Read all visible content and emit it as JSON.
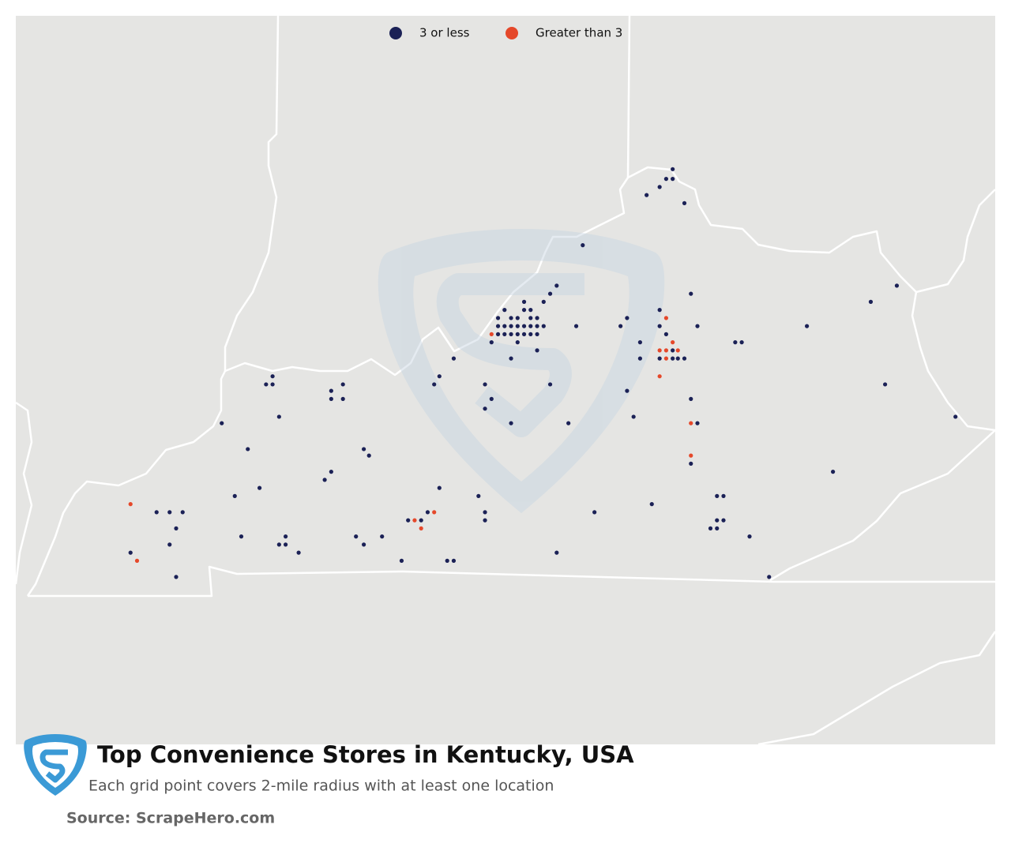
{
  "map": {
    "title": "Top Convenience Stores in Kentucky, USA",
    "subtitle": "Each grid point covers 2-mile radius with at least one location",
    "source": "Source: ScrapeHero.com",
    "series": [
      {
        "name": "3 or less",
        "color": "#1b2156",
        "lon": [
          -84.49,
          -84.54,
          -84.49,
          -84.59,
          -84.69,
          -84.4,
          -85.18,
          -85.38,
          -85.43,
          -85.48,
          -85.63,
          -85.78,
          -85.63,
          -85.58,
          -85.83,
          -85.73,
          -85.68,
          -85.58,
          -85.53,
          -85.83,
          -85.78,
          -85.73,
          -85.68,
          -85.63,
          -85.58,
          -85.53,
          -85.48,
          -85.83,
          -85.78,
          -85.73,
          -85.68,
          -85.63,
          -85.58,
          -85.53,
          -85.88,
          -85.68,
          -85.53,
          -85.73,
          -85.23,
          -84.89,
          -84.84,
          -84.59,
          -84.59,
          -84.35,
          -84.3,
          -84.54,
          -84.74,
          -84.49,
          -84.74,
          -84.59,
          -84.49,
          -84.45,
          -84.4,
          -84.01,
          -83.96,
          -83.46,
          -82.97,
          -82.77,
          -82.86,
          -82.32,
          -84.35,
          -84.3,
          -84.35,
          -84.84,
          -84.79,
          -85.43,
          -85.29,
          -85.73,
          -85.93,
          -85.88,
          -85.93,
          -86.17,
          -86.28,
          -86.32,
          -87.56,
          -87.61,
          -87.56,
          -87.11,
          -87.02,
          -87.11,
          -87.02,
          -87.51,
          -87.95,
          -87.75,
          -86.86,
          -86.82,
          -87.11,
          -87.16,
          -86.28,
          -85.98,
          -87.85,
          -87.66,
          -88.45,
          -88.35,
          -88.25,
          -88.3,
          -88.35,
          -88.65,
          -88.3,
          -87.8,
          -87.46,
          -87.51,
          -87.46,
          -87.36,
          -86.92,
          -86.86,
          -86.72,
          -86.57,
          -86.52,
          -86.42,
          -86.37,
          -86.22,
          -86.17,
          -85.93,
          -85.93,
          -85.38,
          -85.09,
          -84.65,
          -84.15,
          -84.1,
          -84.15,
          -84.1,
          -84.2,
          -84.15,
          -83.9,
          -83.75,
          -83.26
        ],
        "lat": [
          39.04,
          38.98,
          38.98,
          38.93,
          38.88,
          38.83,
          38.57,
          38.32,
          38.27,
          38.22,
          38.22,
          38.17,
          38.17,
          38.17,
          38.12,
          38.12,
          38.12,
          38.12,
          38.12,
          38.07,
          38.07,
          38.07,
          38.07,
          38.07,
          38.07,
          38.07,
          38.07,
          38.02,
          38.02,
          38.02,
          38.02,
          38.02,
          38.02,
          38.02,
          37.97,
          37.97,
          37.92,
          37.87,
          38.07,
          38.07,
          38.12,
          38.17,
          38.07,
          38.27,
          38.07,
          38.02,
          37.97,
          37.92,
          37.87,
          37.87,
          37.87,
          37.87,
          37.87,
          37.97,
          37.97,
          38.07,
          38.22,
          38.32,
          37.71,
          37.51,
          37.62,
          37.47,
          37.22,
          37.67,
          37.51,
          37.71,
          37.47,
          37.47,
          37.71,
          37.62,
          37.56,
          37.87,
          37.76,
          37.71,
          37.76,
          37.71,
          37.71,
          37.67,
          37.71,
          37.62,
          37.62,
          37.51,
          37.47,
          37.31,
          37.31,
          37.27,
          37.17,
          37.12,
          37.07,
          37.02,
          37.02,
          37.07,
          36.92,
          36.92,
          36.92,
          36.82,
          36.72,
          36.67,
          36.52,
          36.77,
          36.77,
          36.72,
          36.72,
          36.67,
          36.77,
          36.72,
          36.77,
          36.62,
          36.87,
          36.87,
          36.92,
          36.62,
          36.62,
          36.92,
          36.87,
          36.67,
          36.92,
          36.97,
          37.02,
          37.02,
          36.87,
          36.87,
          36.82,
          36.82,
          36.77,
          36.52,
          37.17
        ]
      },
      {
        "name": "Greater than 3",
        "color": "#e5482a",
        "lon": [
          -85.88,
          -84.54,
          -84.49,
          -84.59,
          -84.54,
          -84.45,
          -84.54,
          -84.59,
          -84.35,
          -84.35,
          -88.65,
          -88.6,
          -86.47,
          -86.32,
          -86.42
        ],
        "lat": [
          38.02,
          38.12,
          37.97,
          37.92,
          37.92,
          37.92,
          37.87,
          37.76,
          37.47,
          37.27,
          36.97,
          36.62,
          36.87,
          36.92,
          36.82
        ]
      }
    ]
  }
}
